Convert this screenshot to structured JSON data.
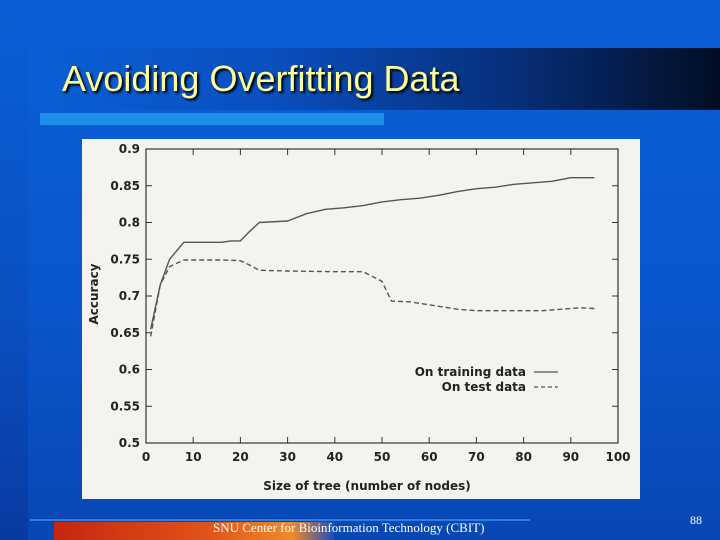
{
  "slide": {
    "title": "Avoiding Overfitting Data",
    "footer": "SNU Center for Bioinformation Technology (CBIT)",
    "page_number": "88"
  },
  "colors": {
    "title_text": "#ffff99",
    "background": "#0a5fd6",
    "plot_line": "#555555"
  },
  "chart_data": {
    "type": "line",
    "title": "",
    "xlabel": "Size of tree (number of nodes)",
    "ylabel": "Accuracy",
    "xlim": [
      0,
      100
    ],
    "ylim": [
      0.5,
      0.9
    ],
    "xticks": [
      0,
      10,
      20,
      30,
      40,
      50,
      60,
      70,
      80,
      90,
      100
    ],
    "yticks": [
      0.5,
      0.55,
      0.6,
      0.65,
      0.7,
      0.75,
      0.8,
      0.85,
      0.9
    ],
    "xtick_labels": [
      "0",
      "10",
      "20",
      "30",
      "40",
      "50",
      "60",
      "70",
      "80",
      "90",
      "100"
    ],
    "ytick_labels": [
      "0.5",
      "0.55",
      "0.6",
      "0.65",
      "0.7",
      "0.75",
      "0.8",
      "0.85",
      "0.9"
    ],
    "legend_position": "bottom-right",
    "series": [
      {
        "name": "On training data",
        "style": "solid",
        "x": [
          1,
          3,
          5,
          8,
          12,
          16,
          18,
          20,
          22,
          24,
          30,
          34,
          38,
          42,
          46,
          50,
          54,
          58,
          62,
          66,
          70,
          74,
          78,
          82,
          86,
          90,
          95
        ],
        "y": [
          0.655,
          0.715,
          0.75,
          0.773,
          0.773,
          0.773,
          0.775,
          0.775,
          0.788,
          0.8,
          0.802,
          0.812,
          0.818,
          0.82,
          0.823,
          0.828,
          0.831,
          0.833,
          0.837,
          0.842,
          0.846,
          0.848,
          0.852,
          0.854,
          0.856,
          0.861,
          0.861
        ]
      },
      {
        "name": "On test data",
        "style": "dashed",
        "x": [
          1,
          3,
          5,
          8,
          12,
          16,
          20,
          22,
          24,
          30,
          40,
          46,
          50,
          52,
          56,
          58,
          62,
          66,
          70,
          75,
          80,
          84,
          88,
          92,
          95
        ],
        "y": [
          0.645,
          0.715,
          0.74,
          0.749,
          0.749,
          0.749,
          0.748,
          0.742,
          0.735,
          0.734,
          0.733,
          0.733,
          0.72,
          0.693,
          0.692,
          0.69,
          0.686,
          0.682,
          0.68,
          0.68,
          0.68,
          0.68,
          0.682,
          0.684,
          0.683
        ]
      }
    ]
  }
}
